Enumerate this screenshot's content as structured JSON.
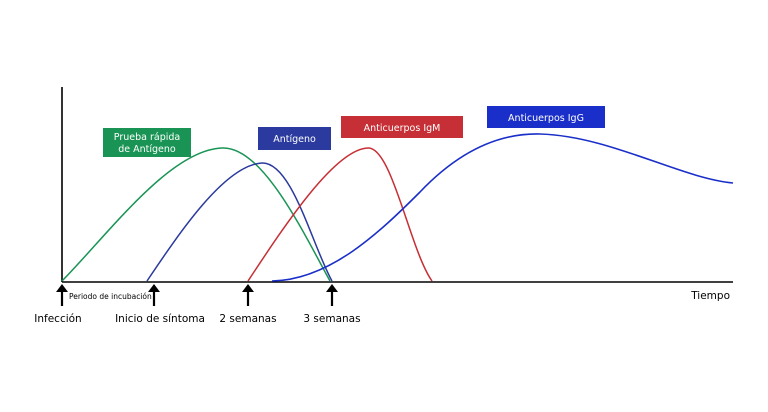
{
  "chart_data": {
    "type": "line",
    "xlabel": "Tiempo",
    "ylabel": "",
    "series": [
      {
        "name": "Prueba rápida de Antígeno",
        "label_lines": [
          "Prueba rápida",
          "de Antígeno"
        ],
        "color": "#1a9455"
      },
      {
        "name": "Antígeno",
        "label_lines": [
          "Antígeno"
        ],
        "color": "#2a3a9e"
      },
      {
        "name": "Anticuerpos IgM",
        "label_lines": [
          "Anticuerpos IgM"
        ],
        "color": "#c62f35"
      },
      {
        "name": "Anticuerpos IgG",
        "label_lines": [
          "Anticuerpos IgG"
        ],
        "color": "#1a2fc9"
      }
    ],
    "annotations": [
      {
        "label": "Infección"
      },
      {
        "label": "Inicio de síntoma"
      },
      {
        "label": "2 semanas"
      },
      {
        "label": "3 semanas"
      }
    ],
    "interval_label": "Periodo de incubación"
  }
}
